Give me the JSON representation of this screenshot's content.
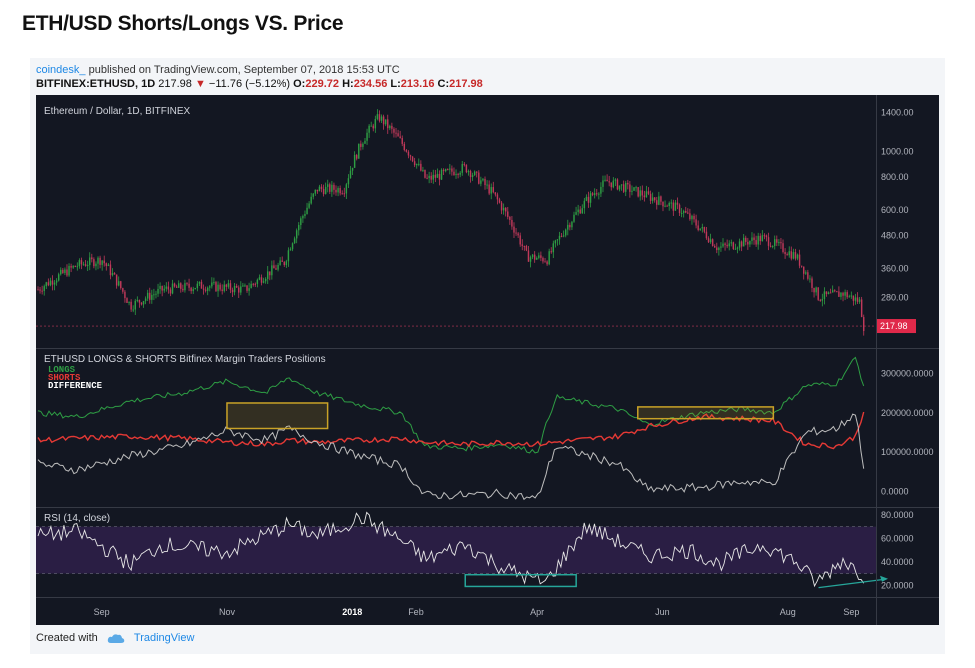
{
  "title": "ETH/USD Shorts/Longs VS. Price",
  "header": {
    "author": "coindesk_",
    "published": "published on TradingView.com, September 07, 2018 15:53 UTC",
    "symbol": "BITFINEX:ETHUSD, 1D",
    "last": "217.98",
    "change": "−11.76 (−5.12%)",
    "o_label": "O:",
    "o": "229.72",
    "h_label": "H:",
    "h": "234.56",
    "l_label": "L:",
    "l": "213.16",
    "c_label": "C:",
    "c": "217.98"
  },
  "footer": {
    "created": "Created with",
    "brand": "TradingView"
  },
  "colors": {
    "bg": "#131722",
    "rsiBand": "#2a1e44",
    "up": "#2e9e44",
    "down": "#c0395a",
    "longs": "#2e9e44",
    "shorts": "#e53935",
    "diff": "#bdbdbd",
    "box": "#c9a227",
    "rsiBox": "#26a69a"
  },
  "chart_data": [
    {
      "type": "line",
      "panel": "price",
      "title": "Ethereum / Dollar, 1D, BITFINEX",
      "scale": "log",
      "ylim": [
        180,
        1550
      ],
      "y_ticks": [
        "1400.00",
        "1000.00",
        "800.00",
        "600.00",
        "480.00",
        "360.00",
        "280.00"
      ],
      "last_price_label": "217.98",
      "x": [
        "2017-08-01",
        "2017-08-20",
        "2017-09-01",
        "2017-09-15",
        "2017-10-01",
        "2017-10-20",
        "2017-11-10",
        "2017-11-29",
        "2017-12-15",
        "2017-12-28",
        "2018-01-06",
        "2018-01-14",
        "2018-02-06",
        "2018-02-25",
        "2018-03-10",
        "2018-03-27",
        "2018-04-06",
        "2018-04-25",
        "2018-05-05",
        "2018-05-20",
        "2018-06-10",
        "2018-06-28",
        "2018-07-20",
        "2018-08-05",
        "2018-08-16",
        "2018-08-28",
        "2018-09-05",
        "2018-09-07"
      ],
      "series": [
        {
          "values": [
            300,
            370,
            390,
            260,
            300,
            310,
            300,
            380,
            720,
            720,
            1100,
            1350,
            780,
            870,
            700,
            400,
            390,
            650,
            770,
            700,
            600,
            430,
            470,
            400,
            280,
            290,
            270,
            217.98
          ]
        }
      ]
    },
    {
      "type": "line",
      "panel": "positions",
      "title": "ETHUSD LONGS & SHORTS Bitfinex Margin Traders Positions",
      "ylim": [
        -40000,
        360000
      ],
      "y_ticks": [
        "300000.0000",
        "200000.0000",
        "100000.0000",
        "0.0000"
      ],
      "x": [
        "2017-08-01",
        "2017-08-20",
        "2017-09-15",
        "2017-10-10",
        "2017-11-01",
        "2017-11-20",
        "2017-12-01",
        "2017-12-15",
        "2018-01-05",
        "2018-01-25",
        "2018-02-05",
        "2018-02-25",
        "2018-03-15",
        "2018-04-01",
        "2018-04-10",
        "2018-05-10",
        "2018-05-25",
        "2018-06-20",
        "2018-07-10",
        "2018-07-25",
        "2018-08-10",
        "2018-08-25",
        "2018-09-03",
        "2018-09-07"
      ],
      "series": [
        {
          "name": "LONGS",
          "values": [
            200000,
            190000,
            230000,
            250000,
            280000,
            250000,
            290000,
            250000,
            220000,
            200000,
            115000,
            110000,
            120000,
            100000,
            240000,
            210000,
            170000,
            200000,
            210000,
            200000,
            270000,
            275000,
            340000,
            270000
          ]
        },
        {
          "name": "SHORTS",
          "values": [
            130000,
            135000,
            140000,
            135000,
            125000,
            120000,
            130000,
            125000,
            130000,
            135000,
            125000,
            120000,
            125000,
            120000,
            125000,
            140000,
            165000,
            190000,
            185000,
            180000,
            120000,
            115000,
            140000,
            205000
          ]
        },
        {
          "name": "DIFFERENCE",
          "values": [
            70000,
            55000,
            90000,
            115000,
            155000,
            130000,
            160000,
            125000,
            90000,
            65000,
            -10000,
            -10000,
            -5000,
            -20000,
            115000,
            70000,
            5000,
            10000,
            25000,
            20000,
            150000,
            160000,
            200000,
            65000
          ]
        }
      ]
    },
    {
      "type": "line",
      "panel": "rsi",
      "title": "RSI (14, close)",
      "ylim": [
        10,
        85
      ],
      "y_ticks": [
        "80.0000",
        "60.0000",
        "40.0000",
        "20.0000"
      ],
      "x": [
        "2017-08-01",
        "2017-08-20",
        "2017-09-15",
        "2017-10-01",
        "2017-11-01",
        "2017-12-01",
        "2017-12-15",
        "2018-01-06",
        "2018-01-25",
        "2018-02-06",
        "2018-02-25",
        "2018-03-15",
        "2018-03-30",
        "2018-04-05",
        "2018-04-25",
        "2018-05-05",
        "2018-05-25",
        "2018-06-15",
        "2018-06-28",
        "2018-07-20",
        "2018-08-05",
        "2018-08-15",
        "2018-08-28",
        "2018-09-07"
      ],
      "series": [
        {
          "values": [
            62,
            66,
            38,
            55,
            48,
            72,
            62,
            78,
            58,
            42,
            55,
            35,
            25,
            22,
            70,
            62,
            45,
            50,
            38,
            55,
            40,
            22,
            42,
            28
          ]
        }
      ],
      "x_ticks": [
        "Sep",
        "Nov",
        "2018",
        "Feb",
        "Apr",
        "Jun",
        "Aug",
        "Sep"
      ]
    }
  ]
}
